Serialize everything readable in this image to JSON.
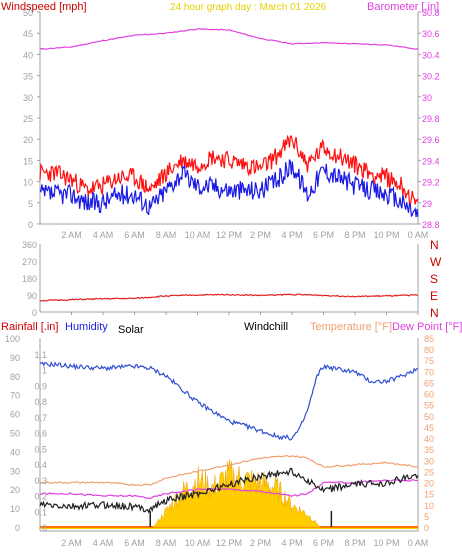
{
  "header": {
    "windspeed_label": "Windspeed [mph]",
    "graph_title": "24 hour graph day : March 01 2026",
    "barometer_label": "Barometer [.in]"
  },
  "colors": {
    "background": "#ffffff",
    "axis": "#a0a0a0",
    "tick_text": "#a0a0a0",
    "red_label": "#cc0000",
    "magenta": "#e040e0",
    "blue": "#2020e0",
    "gust_red": "#ff1010",
    "wind_blue": "#1a1ae6",
    "direction_red": "#e02020",
    "humidity_blue": "#3050d0",
    "temperature_orange": "#f0a070",
    "dewpoint_magenta": "#e040e0",
    "windchill_black": "#202020",
    "solar_yellow": "#ffcc00",
    "title_yellow": "#e6d200"
  },
  "chart_data": [
    {
      "type": "line",
      "name": "wind-barometer",
      "x_ticks": [
        "2 AM",
        "4 AM",
        "6 AM",
        "8 AM",
        "10 AM",
        "12 PM",
        "2 PM",
        "4 PM",
        "6 PM",
        "8 PM",
        "10 PM",
        "0 AM"
      ],
      "left_axis": {
        "label": "Windspeed [mph]",
        "ticks": [
          "0",
          "5",
          "10",
          "15",
          "20",
          "25",
          "30",
          "35",
          "40",
          "45",
          "50"
        ],
        "ylim": [
          0,
          50
        ]
      },
      "right_axis": {
        "label": "Barometer [.in]",
        "ticks": [
          "28.8",
          "29",
          "29.2",
          "29.4",
          "29.6",
          "29.8",
          "30",
          "30.2",
          "30.4",
          "30.6",
          "30.8"
        ],
        "ylim": [
          28.8,
          30.8
        ]
      },
      "series": [
        {
          "key": "gust",
          "color": "#ff1010",
          "axis": "left",
          "points": [
            [
              0,
              12
            ],
            [
              1,
              12
            ],
            [
              2,
              10.5
            ],
            [
              3,
              8
            ],
            [
              4,
              9
            ],
            [
              5,
              11
            ],
            [
              6,
              11
            ],
            [
              7,
              8
            ],
            [
              8,
              12
            ],
            [
              9,
              15
            ],
            [
              10,
              14
            ],
            [
              11,
              16
            ],
            [
              12,
              15
            ],
            [
              13,
              14
            ],
            [
              14,
              13
            ],
            [
              15,
              16
            ],
            [
              16,
              20
            ],
            [
              17,
              14
            ],
            [
              18,
              18
            ],
            [
              19,
              16
            ],
            [
              20,
              14
            ],
            [
              21,
              12
            ],
            [
              22,
              11
            ],
            [
              23,
              9
            ],
            [
              24,
              4
            ]
          ]
        },
        {
          "key": "wind",
          "color": "#1a1ae6",
          "axis": "left",
          "points": [
            [
              0,
              7
            ],
            [
              1,
              7
            ],
            [
              2,
              7
            ],
            [
              3,
              5
            ],
            [
              4,
              5
            ],
            [
              5,
              7
            ],
            [
              6,
              7
            ],
            [
              7,
              4
            ],
            [
              8,
              8
            ],
            [
              9,
              12
            ],
            [
              10,
              9
            ],
            [
              11,
              9
            ],
            [
              12,
              8
            ],
            [
              13,
              8
            ],
            [
              14,
              8
            ],
            [
              15,
              10
            ],
            [
              16,
              14
            ],
            [
              17,
              7
            ],
            [
              18,
              13
            ],
            [
              19,
              11
            ],
            [
              20,
              9
            ],
            [
              21,
              8
            ],
            [
              22,
              7
            ],
            [
              23,
              5
            ],
            [
              24,
              2
            ]
          ]
        },
        {
          "key": "barometer",
          "color": "#e040e0",
          "axis": "right",
          "points": [
            [
              0,
              30.45
            ],
            [
              2,
              30.47
            ],
            [
              4,
              30.53
            ],
            [
              6,
              30.58
            ],
            [
              8,
              30.6
            ],
            [
              10,
              30.64
            ],
            [
              12,
              30.63
            ],
            [
              14,
              30.55
            ],
            [
              16,
              30.5
            ],
            [
              18,
              30.51
            ],
            [
              20,
              30.5
            ],
            [
              22,
              30.49
            ],
            [
              24,
              30.45
            ]
          ]
        }
      ]
    },
    {
      "type": "line",
      "name": "wind-direction",
      "x_ticks": [
        "2 AM",
        "4 AM",
        "6 AM",
        "8 AM",
        "10 AM",
        "12 PM",
        "2 PM",
        "4 PM",
        "6 PM",
        "8 PM",
        "10 PM",
        "0 AM"
      ],
      "left_axis": {
        "ticks": [
          "0",
          "90",
          "180",
          "270",
          "360"
        ],
        "ylim": [
          0,
          360
        ]
      },
      "compass": [
        "N",
        "W",
        "S",
        "E",
        "N"
      ],
      "series": [
        {
          "key": "direction",
          "color": "#e02020",
          "points": [
            [
              0,
              60
            ],
            [
              2,
              65
            ],
            [
              4,
              70
            ],
            [
              6,
              72
            ],
            [
              8,
              85
            ],
            [
              10,
              90
            ],
            [
              12,
              92
            ],
            [
              14,
              88
            ],
            [
              16,
              93
            ],
            [
              18,
              88
            ],
            [
              20,
              82
            ],
            [
              22,
              85
            ],
            [
              24,
              90
            ]
          ]
        }
      ]
    },
    {
      "type": "line",
      "name": "temperature-humidity",
      "x_ticks": [
        "2 AM",
        "4 AM",
        "6 AM",
        "8 AM",
        "10 AM",
        "12 PM",
        "2 PM",
        "4 PM",
        "6 PM",
        "8 PM",
        "10 PM",
        "0 AM"
      ],
      "labels": {
        "rainfall": "Rainfall [.in]",
        "humidity": "Humidity",
        "solar": "Solar",
        "windchill": "Windchill",
        "temperature": "Temperature [°F]",
        "dewpoint": "Dew Point [°F]"
      },
      "rain_axis": {
        "ticks": [
          "0",
          "0.1",
          "0.2",
          "0.3",
          "0.4",
          "0.5",
          "0.6",
          "0.7",
          "0.8",
          "0.9",
          "1",
          "1.1"
        ],
        "ylim": [
          0,
          1.2
        ]
      },
      "humidity_axis": {
        "ticks": [
          "0",
          "10",
          "20",
          "30",
          "40",
          "50",
          "60",
          "70",
          "80",
          "90",
          "100"
        ],
        "ylim": [
          0,
          100
        ]
      },
      "temp_axis": {
        "ticks": [
          "0",
          "5",
          "10",
          "15",
          "20",
          "25",
          "30",
          "35",
          "40",
          "45",
          "50",
          "55",
          "60",
          "65",
          "70",
          "75",
          "80",
          "85"
        ],
        "ylim": [
          0,
          85
        ]
      },
      "markers": [
        7,
        18.5
      ],
      "series": [
        {
          "key": "humidity",
          "color": "#3050d0",
          "axis": "humidity",
          "points": [
            [
              0,
              86
            ],
            [
              1,
              86
            ],
            [
              2,
              85
            ],
            [
              4,
              84
            ],
            [
              6,
              85
            ],
            [
              7,
              84
            ],
            [
              8,
              80
            ],
            [
              10,
              66
            ],
            [
              12,
              56
            ],
            [
              14,
              51
            ],
            [
              15,
              48
            ],
            [
              16,
              47
            ],
            [
              16.5,
              52
            ],
            [
              17,
              62
            ],
            [
              17.6,
              80
            ],
            [
              18,
              85
            ],
            [
              20,
              82
            ],
            [
              21,
              77
            ],
            [
              22,
              77
            ],
            [
              23,
              80
            ],
            [
              24,
              84
            ]
          ]
        },
        {
          "key": "temperature",
          "color": "#f0a070",
          "axis": "temp",
          "points": [
            [
              0,
              20
            ],
            [
              2,
              20
            ],
            [
              4,
              20
            ],
            [
              6,
              19
            ],
            [
              7,
              19
            ],
            [
              8,
              22
            ],
            [
              10,
              25
            ],
            [
              12,
              28
            ],
            [
              14,
              31
            ],
            [
              16,
              32
            ],
            [
              17,
              31
            ],
            [
              18,
              27
            ],
            [
              20,
              28
            ],
            [
              22,
              29
            ],
            [
              24,
              27
            ]
          ]
        },
        {
          "key": "dewpoint",
          "color": "#e040e0",
          "axis": "temp",
          "points": [
            [
              0,
              15
            ],
            [
              2,
              15
            ],
            [
              4,
              14
            ],
            [
              6,
              14
            ],
            [
              7,
              13
            ],
            [
              8,
              15
            ],
            [
              10,
              17
            ],
            [
              12,
              17
            ],
            [
              14,
              16
            ],
            [
              16,
              14
            ],
            [
              17,
              15
            ],
            [
              18,
              20
            ],
            [
              20,
              20
            ],
            [
              22,
              21
            ],
            [
              24,
              21
            ]
          ]
        },
        {
          "key": "windchill",
          "color": "#202020",
          "axis": "temp",
          "points": [
            [
              0,
              10
            ],
            [
              2,
              9
            ],
            [
              4,
              10
            ],
            [
              6,
              9
            ],
            [
              7,
              8
            ],
            [
              8,
              12
            ],
            [
              10,
              15
            ],
            [
              12,
              19
            ],
            [
              14,
              23
            ],
            [
              16,
              25
            ],
            [
              17,
              21
            ],
            [
              18,
              16
            ],
            [
              19,
              18
            ],
            [
              20,
              19
            ],
            [
              22,
              20
            ],
            [
              24,
              23
            ]
          ]
        },
        {
          "key": "solar",
          "color": "#ffcc00",
          "axis": "humidity",
          "points": [
            [
              7.2,
              0
            ],
            [
              8,
              10
            ],
            [
              9,
              22
            ],
            [
              10,
              30
            ],
            [
              11,
              25
            ],
            [
              12,
              33
            ],
            [
              13,
              30
            ],
            [
              14,
              28
            ],
            [
              15,
              25
            ],
            [
              16,
              14
            ],
            [
              17,
              8
            ],
            [
              17.8,
              0
            ]
          ]
        }
      ]
    }
  ]
}
